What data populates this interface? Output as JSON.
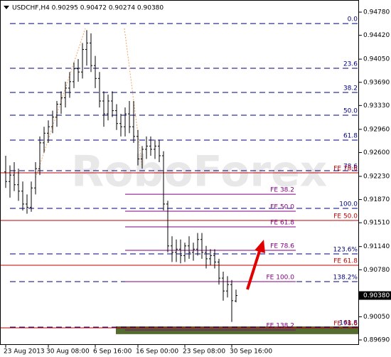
{
  "chart_data": {
    "type": "ohlc",
    "title": "USDCHF,H4 0.90295 0.90472 0.90274 0.90380",
    "watermark": "RoboForex",
    "bar_color": "#000000",
    "ylim": [
      0.89624,
      0.94946
    ],
    "yticks": [
      {
        "value": 0.9478,
        "label": "0.94780"
      },
      {
        "value": 0.9442,
        "label": "0.94420"
      },
      {
        "value": 0.9405,
        "label": "0.94050"
      },
      {
        "value": 0.9369,
        "label": "0.93690"
      },
      {
        "value": 0.9333,
        "label": "0.93330"
      },
      {
        "value": 0.9296,
        "label": "0.92960"
      },
      {
        "value": 0.926,
        "label": "0.92600"
      },
      {
        "value": 0.9223,
        "label": "0.92230"
      },
      {
        "value": 0.9187,
        "label": "0.91870"
      },
      {
        "value": 0.9151,
        "label": "0.91510"
      },
      {
        "value": 0.9114,
        "label": "0.91140"
      },
      {
        "value": 0.9078,
        "label": "0.90780"
      },
      {
        "value": 0.9005,
        "label": "0.90050"
      },
      {
        "value": 0.8969,
        "label": "0.89690"
      }
    ],
    "xticks": [
      {
        "value": 0,
        "label": "23 Aug 2013"
      },
      {
        "value": 10,
        "label": "30 Aug 08:00"
      },
      {
        "value": 21,
        "label": "6 Sep 16:00"
      },
      {
        "value": 31,
        "label": "16 Sep 00:00"
      },
      {
        "value": 42,
        "label": "23 Sep 08:00"
      },
      {
        "value": 53,
        "label": "30 Sep 16:00"
      }
    ],
    "last_price": {
      "value": 0.9038,
      "label": "0.90380"
    },
    "open": [
      0.923,
      0.9215,
      0.9225,
      0.921,
      0.92,
      0.918,
      0.9175,
      0.9205,
      0.9235,
      0.9275,
      0.929,
      0.93,
      0.9315,
      0.9335,
      0.9345,
      0.936,
      0.937,
      0.939,
      0.9385,
      0.942,
      0.943,
      0.9395,
      0.9375,
      0.934,
      0.932,
      0.934,
      0.9325,
      0.9305,
      0.93,
      0.932,
      0.93,
      0.9285,
      0.925,
      0.9265,
      0.927,
      0.9265,
      0.927,
      0.9255,
      0.918,
      0.9115,
      0.9105,
      0.911,
      0.91,
      0.9115,
      0.9105,
      0.911,
      0.9125,
      0.9105,
      0.9095,
      0.91,
      0.909,
      0.9065,
      0.9045,
      0.9055,
      0.90295
    ],
    "high": [
      0.9255,
      0.924,
      0.9245,
      0.9235,
      0.9215,
      0.9195,
      0.9215,
      0.9245,
      0.9285,
      0.93,
      0.931,
      0.9325,
      0.934,
      0.9355,
      0.937,
      0.9385,
      0.94,
      0.9405,
      0.943,
      0.945,
      0.9445,
      0.941,
      0.9385,
      0.9355,
      0.935,
      0.9355,
      0.9335,
      0.932,
      0.933,
      0.934,
      0.934,
      0.9295,
      0.927,
      0.9285,
      0.9285,
      0.928,
      0.928,
      0.9262,
      0.9185,
      0.913,
      0.9125,
      0.9125,
      0.912,
      0.913,
      0.912,
      0.9135,
      0.9135,
      0.9115,
      0.911,
      0.911,
      0.9095,
      0.9075,
      0.9068,
      0.9062,
      0.90472
    ],
    "low": [
      0.9205,
      0.919,
      0.92,
      0.9185,
      0.917,
      0.9165,
      0.9168,
      0.9195,
      0.9225,
      0.926,
      0.9275,
      0.929,
      0.93,
      0.932,
      0.933,
      0.9345,
      0.936,
      0.937,
      0.9375,
      0.9395,
      0.9385,
      0.936,
      0.933,
      0.93,
      0.931,
      0.9315,
      0.9295,
      0.9285,
      0.9285,
      0.929,
      0.9275,
      0.924,
      0.9235,
      0.925,
      0.9255,
      0.925,
      0.9245,
      0.917,
      0.9105,
      0.909,
      0.909,
      0.9088,
      0.909,
      0.9095,
      0.9092,
      0.91,
      0.9095,
      0.908,
      0.9085,
      0.908,
      0.9055,
      0.903,
      0.9035,
      0.8997,
      0.90274
    ],
    "close": [
      0.9215,
      0.9225,
      0.921,
      0.92,
      0.918,
      0.9175,
      0.9205,
      0.9235,
      0.9275,
      0.929,
      0.93,
      0.9315,
      0.9335,
      0.9345,
      0.936,
      0.937,
      0.939,
      0.9385,
      0.942,
      0.943,
      0.9395,
      0.9375,
      0.934,
      0.932,
      0.934,
      0.9325,
      0.9305,
      0.93,
      0.932,
      0.93,
      0.9285,
      0.925,
      0.9265,
      0.927,
      0.9265,
      0.927,
      0.9255,
      0.918,
      0.9115,
      0.9105,
      0.911,
      0.91,
      0.9115,
      0.9105,
      0.911,
      0.9125,
      0.9105,
      0.9095,
      0.91,
      0.909,
      0.9065,
      0.9045,
      0.9055,
      0.903,
      0.9038
    ],
    "zone": {
      "from": 0.8978,
      "to": 0.899,
      "color": "#556b2f"
    },
    "level_sets": [
      {
        "color": "#000080",
        "dashed": true,
        "start": 1,
        "levels": [
          {
            "value": 0.94603,
            "label": "0.0"
          },
          {
            "value": 0.93908,
            "label": "23.6"
          },
          {
            "value": 0.93532,
            "label": "38.2"
          },
          {
            "value": 0.93179,
            "label": "50.0"
          },
          {
            "value": 0.92793,
            "label": "61.8"
          },
          {
            "value": 0.92318,
            "label": "78.6"
          },
          {
            "value": 0.91733,
            "label": "100.0"
          },
          {
            "value": 0.91026,
            "label": "123.6%"
          },
          {
            "value": 0.90595,
            "label": "138.2%"
          },
          {
            "value": 0.89889,
            "label": "161.8"
          }
        ]
      },
      {
        "color": "#c00000",
        "dashed": false,
        "start": -1,
        "levels": [
          {
            "value": 0.92285,
            "label": "FE 78.6"
          },
          {
            "value": 0.91545,
            "label": "FE 50.0"
          },
          {
            "value": 0.90849,
            "label": "FE 61.8"
          },
          {
            "value": 0.89878,
            "label": "FE 78.6"
          }
        ]
      },
      {
        "color": "#800080",
        "dashed": false,
        "start": 28,
        "end": 68,
        "levels": [
          {
            "value": 0.91953,
            "label": "FE 38.2"
          },
          {
            "value": 0.91689,
            "label": "FE 50.0"
          },
          {
            "value": 0.91446,
            "label": "FE 61.8"
          },
          {
            "value": 0.91081,
            "label": "FE 78.6"
          },
          {
            "value": 0.90595,
            "label": "FE 100.0"
          },
          {
            "value": 0.89845,
            "label": "FE 138.2"
          }
        ]
      }
    ]
  }
}
